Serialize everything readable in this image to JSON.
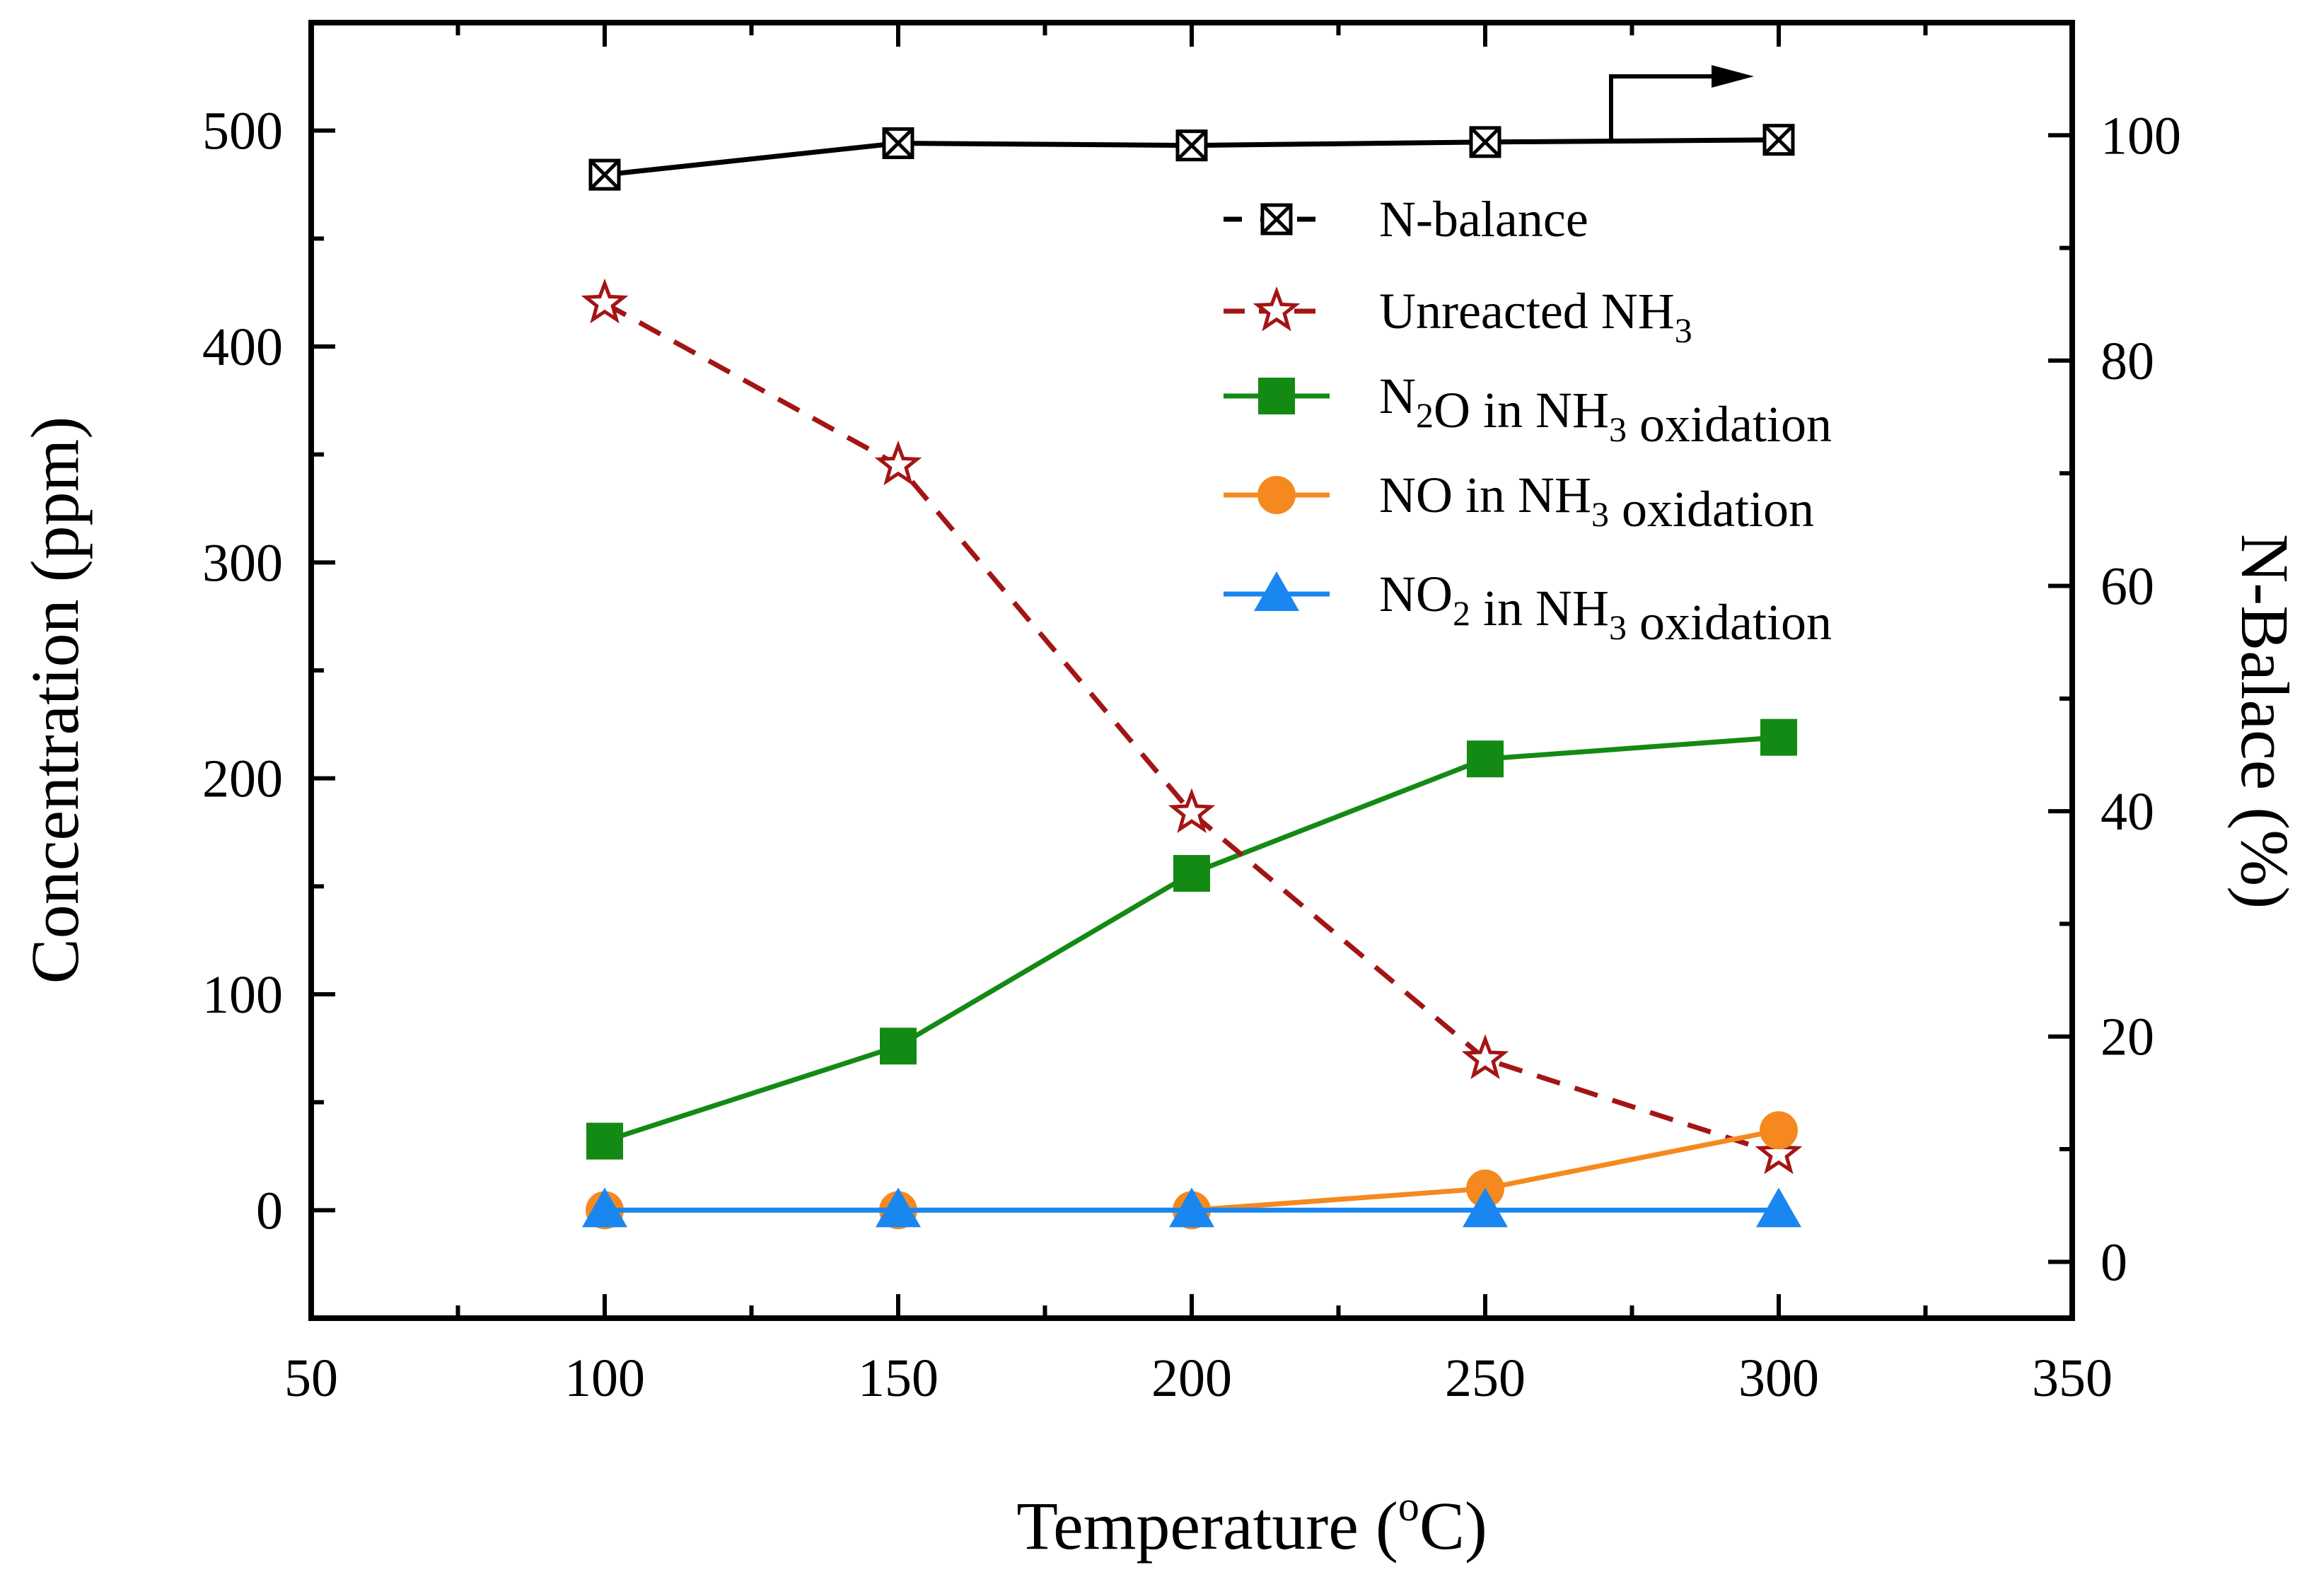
{
  "chart_data": {
    "type": "line",
    "xlabel": "Temperature (",
    "xlabel_sup": "o",
    "xlabel_unit": "C)",
    "ylabel_left": "Concentration (ppm)",
    "ylabel_right": "N-Balace (%)",
    "xlim": [
      50,
      350
    ],
    "ylim_left": [
      -50,
      550
    ],
    "ylim_right": [
      -5,
      110
    ],
    "x_ticks": [
      50,
      100,
      150,
      200,
      250,
      300,
      350
    ],
    "y_left_ticks": [
      0,
      100,
      200,
      300,
      400,
      500
    ],
    "y_right_ticks": [
      0,
      20,
      40,
      60,
      80,
      100
    ],
    "x": [
      100,
      150,
      200,
      250,
      300
    ],
    "series": [
      {
        "name": "N-balance",
        "axis": "right",
        "color": "#000000",
        "marker": "boxed-x",
        "line": "solid",
        "values": [
          96.5,
          99.3,
          99.1,
          99.4,
          99.6
        ]
      },
      {
        "name": "Unreacted NH3",
        "axis": "left",
        "color": "#a31515",
        "marker": "star-open",
        "line": "dashed",
        "values": [
          420,
          345,
          184,
          70,
          26
        ]
      },
      {
        "name": "N2O in NH3 oxidation",
        "axis": "left",
        "color": "#138a13",
        "marker": "square",
        "line": "solid",
        "values": [
          32,
          76,
          156,
          209,
          219
        ]
      },
      {
        "name": "NO in NH3 oxidation",
        "axis": "left",
        "color": "#f5891f",
        "marker": "circle",
        "line": "solid",
        "values": [
          0,
          0,
          0,
          10,
          37
        ]
      },
      {
        "name": "NO2 in NH3 oxidation",
        "axis": "left",
        "color": "#1a86f0",
        "marker": "triangle",
        "line": "solid",
        "values": [
          0,
          0,
          0,
          0,
          0
        ]
      }
    ],
    "legend": {
      "position": "top-right",
      "entries": [
        {
          "parts": [
            [
              "N-balance",
              ""
            ]
          ]
        },
        {
          "parts": [
            [
              "Unreacted NH",
              ""
            ],
            [
              "3",
              "sub"
            ]
          ]
        },
        {
          "parts": [
            [
              "N",
              ""
            ],
            [
              "2",
              "sub"
            ],
            [
              "O in NH",
              ""
            ],
            [
              "3",
              "sub"
            ],
            [
              " oxidation",
              ""
            ]
          ]
        },
        {
          "parts": [
            [
              "NO in NH",
              ""
            ],
            [
              "3",
              "sub"
            ],
            [
              " oxidation",
              ""
            ]
          ]
        },
        {
          "parts": [
            [
              "NO",
              ""
            ],
            [
              "2",
              "sub"
            ],
            [
              " in NH",
              ""
            ],
            [
              "3",
              "sub"
            ],
            [
              " oxidation",
              ""
            ]
          ]
        }
      ]
    },
    "annotation": {
      "type": "arrow",
      "text": "",
      "meaning": "N-balance series plotted on right axis"
    }
  }
}
